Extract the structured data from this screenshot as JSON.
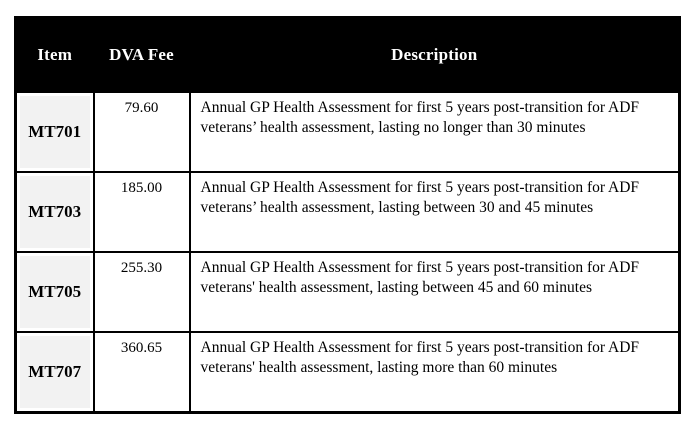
{
  "table": {
    "columns": [
      {
        "label": "Item"
      },
      {
        "label": "DVA Fee"
      },
      {
        "label": "Description"
      }
    ],
    "rows": [
      {
        "item": "MT701",
        "fee": "79.60",
        "description": "Annual GP Health Assessment for first 5 years post-transition for ADF veterans’ health assessment, lasting no longer than 30 minutes"
      },
      {
        "item": "MT703",
        "fee": "185.00",
        "description": "Annual GP Health Assessment for first 5 years post-transition for ADF veterans’ health assessment, lasting between 30 and 45 minutes"
      },
      {
        "item": "MT705",
        "fee": "255.30",
        "description": "Annual GP Health Assessment for first 5 years post-transition for ADF veterans' health assessment, lasting between 45 and 60 minutes"
      },
      {
        "item": "MT707",
        "fee": "360.65",
        "description": "Annual GP Health Assessment for first 5 years post-transition for ADF veterans' health assessment, lasting more than 60 minutes"
      }
    ],
    "colors": {
      "header_bg": "#000000",
      "header_text": "#ffffff",
      "item_cell_bg": "#f2f2f2",
      "border": "#000000",
      "page_bg": "#ffffff"
    }
  }
}
